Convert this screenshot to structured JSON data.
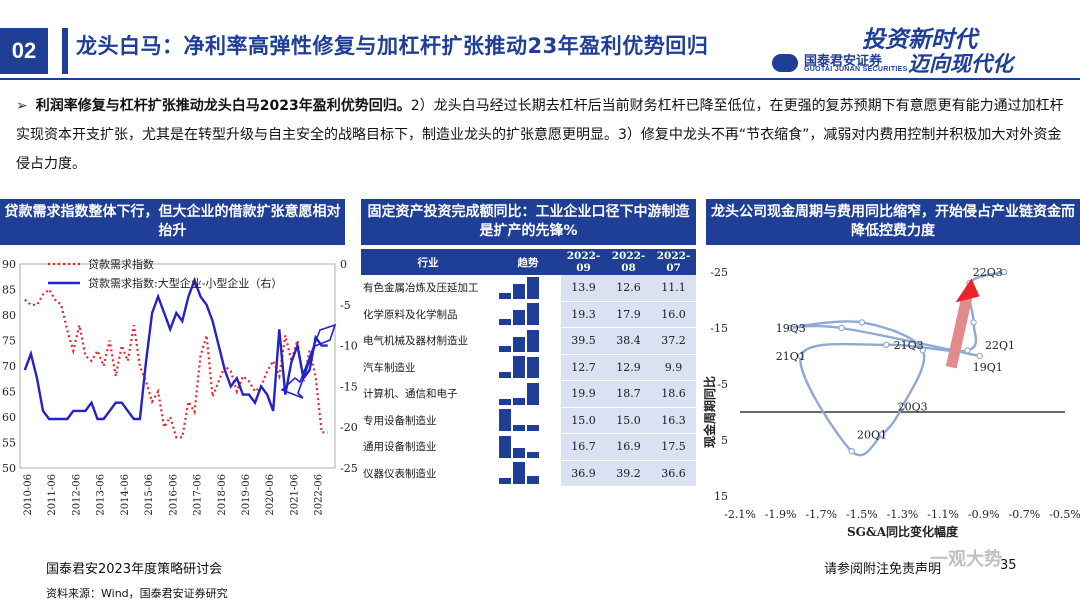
{
  "header": {
    "section_number": "02",
    "title": "龙头白马：净利率高弹性修复与加杠杆扩张推动23年盈利优势回归",
    "logo_cn": "国泰君安证券",
    "logo_en": "GUOTAI JUNAN SECURITIES",
    "slogan_line1": "投资新时代",
    "slogan_line2": "迈向现代化"
  },
  "intro": {
    "bold": "利润率修复与杠杆扩张推动龙头白马2023年盈利优势回归。",
    "body": "2）龙头白马经过长期去杠杆后当前财务杠杆已降至低位，在更强的复苏预期下有意愿更有能力通过加杠杆实现资本开支扩张，尤其是在转型升级与自主安全的战略目标下，制造业龙头的扩张意愿更明显。3）修复中龙头不再“节衣缩食”，减弱对内费用控制并积极加大对外资金侵占力度。"
  },
  "panels": {
    "p1_title": "贷款需求指数整体下行，但大企业的借款扩张意愿相对抬升",
    "p2_title": "固定资产投资完成额同比：工业企业口径下中游制造是扩产的先锋%",
    "p3_title": "龙头公司现金周期与费用同比缩窄，开始侵占产业链资金而降低控费力度"
  },
  "colors": {
    "brand": "#1f3f96",
    "loan_demand": "#e8252a",
    "spread": "#2323c8",
    "cycle": "#8ea9d2",
    "table_cell": "#d9e1f2"
  },
  "chart_data": [
    {
      "type": "line",
      "legend": [
        "贷款需求指数",
        "贷款需求指数:大型企业-小型企业（右）"
      ],
      "legend_placement": "top-left",
      "x_ticks": [
        "2010-06",
        "2011-06",
        "2012-06",
        "2013-06",
        "2014-06",
        "2015-06",
        "2016-06",
        "2017-06",
        "2018-06",
        "2019-06",
        "2020-06",
        "2021-06",
        "2022-06"
      ],
      "y_left": {
        "ticks": [
          50,
          55,
          60,
          65,
          70,
          75,
          80,
          85,
          90
        ],
        "ylim": [
          50,
          90
        ]
      },
      "y_right": {
        "ticks": [
          0,
          -5,
          -10,
          -15,
          -20,
          -25
        ],
        "ylim": [
          -25,
          0
        ]
      },
      "series": [
        {
          "name": "贷款需求指数",
          "axis": "left",
          "style": "dotted",
          "x": [
            2010.2,
            2010.45,
            2010.7,
            2010.95,
            2011.2,
            2011.45,
            2011.7,
            2011.95,
            2012.2,
            2012.45,
            2012.7,
            2012.95,
            2013.2,
            2013.45,
            2013.7,
            2013.95,
            2014.2,
            2014.45,
            2014.7,
            2014.95,
            2015.2,
            2015.45,
            2015.7,
            2015.95,
            2016.2,
            2016.45,
            2016.7,
            2016.95,
            2017.2,
            2017.45,
            2017.7,
            2017.95,
            2018.2,
            2018.45,
            2018.7,
            2018.95,
            2019.2,
            2019.45,
            2019.7,
            2019.95,
            2020.2,
            2020.45,
            2020.7,
            2020.95,
            2021.2,
            2021.45,
            2021.7,
            2021.95,
            2022.2,
            2022.45,
            2022.7
          ],
          "values": [
            83,
            82,
            82,
            84,
            85,
            83,
            82,
            77,
            73,
            78,
            72,
            71,
            73,
            70,
            75,
            68,
            74,
            71,
            78,
            70,
            67,
            63,
            65,
            58,
            60,
            56,
            56,
            63,
            61,
            72,
            76,
            64,
            67,
            70,
            69,
            65,
            68,
            67,
            65,
            66,
            69,
            71,
            68,
            76,
            71,
            75,
            67,
            73,
            68,
            57,
            57
          ]
        },
        {
          "name": "贷款需求指数:大型企业-小型企业（右）",
          "axis": "right",
          "style": "solid",
          "x": [
            2010.2,
            2010.45,
            2010.7,
            2010.95,
            2011.2,
            2011.45,
            2011.7,
            2011.95,
            2012.2,
            2012.45,
            2012.7,
            2012.95,
            2013.2,
            2013.45,
            2013.7,
            2013.95,
            2014.2,
            2014.45,
            2014.7,
            2014.95,
            2015.2,
            2015.45,
            2015.7,
            2015.95,
            2016.2,
            2016.45,
            2016.7,
            2016.95,
            2017.2,
            2017.45,
            2017.7,
            2017.95,
            2018.2,
            2018.45,
            2018.7,
            2018.95,
            2019.2,
            2019.45,
            2019.7,
            2019.95,
            2020.2,
            2020.45,
            2020.7,
            2020.95,
            2021.2,
            2021.45,
            2021.7,
            2021.95,
            2022.2,
            2022.45,
            2022.7
          ],
          "values": [
            -13,
            -11,
            -14,
            -18,
            -19,
            -19,
            -19,
            -19,
            -18,
            -18,
            -18,
            -17,
            -19,
            -19,
            -18,
            -17,
            -17,
            -18,
            -19,
            -19,
            -12,
            -6,
            -4,
            -6,
            -8,
            -6,
            -7,
            -4,
            -2,
            -4,
            -5,
            -7,
            -10,
            -13,
            -15,
            -14,
            -16,
            -16,
            -17,
            -15,
            -16,
            -18,
            -8,
            -16,
            -12,
            -10,
            -14,
            -13,
            -9,
            -10,
            -10
          ]
        }
      ]
    },
    {
      "type": "table",
      "columns": [
        "行业",
        "趋势",
        "2022-09",
        "2022-08",
        "2022-07"
      ],
      "rows": [
        {
          "industry": "有色金属冶炼及压延加工",
          "values": [
            13.9,
            12.6,
            11.1
          ]
        },
        {
          "industry": "化学原料及化学制品",
          "values": [
            19.3,
            17.9,
            16.0
          ]
        },
        {
          "industry": "电气机械及器材制造业",
          "values": [
            39.5,
            38.4,
            37.2
          ]
        },
        {
          "industry": "汽车制造业",
          "values": [
            12.7,
            12.9,
            9.9
          ]
        },
        {
          "industry": "计算机、通信和电子",
          "values": [
            19.9,
            18.7,
            18.6
          ]
        },
        {
          "industry": "专用设备制造业",
          "values": [
            15.0,
            15.0,
            16.3
          ]
        },
        {
          "industry": "通用设备制造业",
          "values": [
            16.7,
            16.9,
            17.5
          ]
        },
        {
          "industry": "仪器仪表制造业",
          "values": [
            36.9,
            39.2,
            36.6
          ]
        }
      ]
    },
    {
      "type": "scatter",
      "xlabel": "SG&A同比变化幅度",
      "ylabel": "现金周期同比",
      "x_ticks": [
        "-2.1%",
        "-1.9%",
        "-1.7%",
        "-1.5%",
        "-1.3%",
        "-1.1%",
        "-0.9%",
        "-0.7%",
        "-0.5%"
      ],
      "y_ticks": [
        "-25",
        "-15",
        "-5",
        "5",
        "15"
      ],
      "xlim": [
        -2.1,
        -0.5
      ],
      "ylim": [
        -25,
        15
      ],
      "y_reversed": true,
      "labels": [
        {
          "text": "19Q3",
          "x": -1.85,
          "y": -15
        },
        {
          "text": "21Q1",
          "x": -1.85,
          "y": -10
        },
        {
          "text": "21Q3",
          "x": -1.27,
          "y": -12
        },
        {
          "text": "22Q1",
          "x": -0.82,
          "y": -12
        },
        {
          "text": "19Q1",
          "x": -0.88,
          "y": -8
        },
        {
          "text": "20Q3",
          "x": -1.25,
          "y": -1
        },
        {
          "text": "20Q1",
          "x": -1.45,
          "y": 4
        },
        {
          "text": "22Q3",
          "x": -0.88,
          "y": -25
        }
      ],
      "points": [
        {
          "x": -0.92,
          "y": -10
        },
        {
          "x": -1.6,
          "y": -15
        },
        {
          "x": -1.85,
          "y": -15
        },
        {
          "x": -1.5,
          "y": -16
        },
        {
          "x": -1.2,
          "y": -11
        },
        {
          "x": -1.3,
          "y": -1
        },
        {
          "x": -1.4,
          "y": 4
        },
        {
          "x": -1.55,
          "y": 7
        },
        {
          "x": -1.8,
          "y": -10
        },
        {
          "x": -1.38,
          "y": -12
        },
        {
          "x": -0.98,
          "y": -11
        },
        {
          "x": -0.95,
          "y": -16
        },
        {
          "x": -0.97,
          "y": -23
        },
        {
          "x": -0.8,
          "y": -25
        }
      ]
    }
  ],
  "footer": {
    "event": "国泰君安2023年度策略研讨会",
    "source": "资料来源：Wind，国泰君安证券研究",
    "disclaimer": "请参阅附注免责声明",
    "page": "35",
    "watermark": "一观大势"
  }
}
